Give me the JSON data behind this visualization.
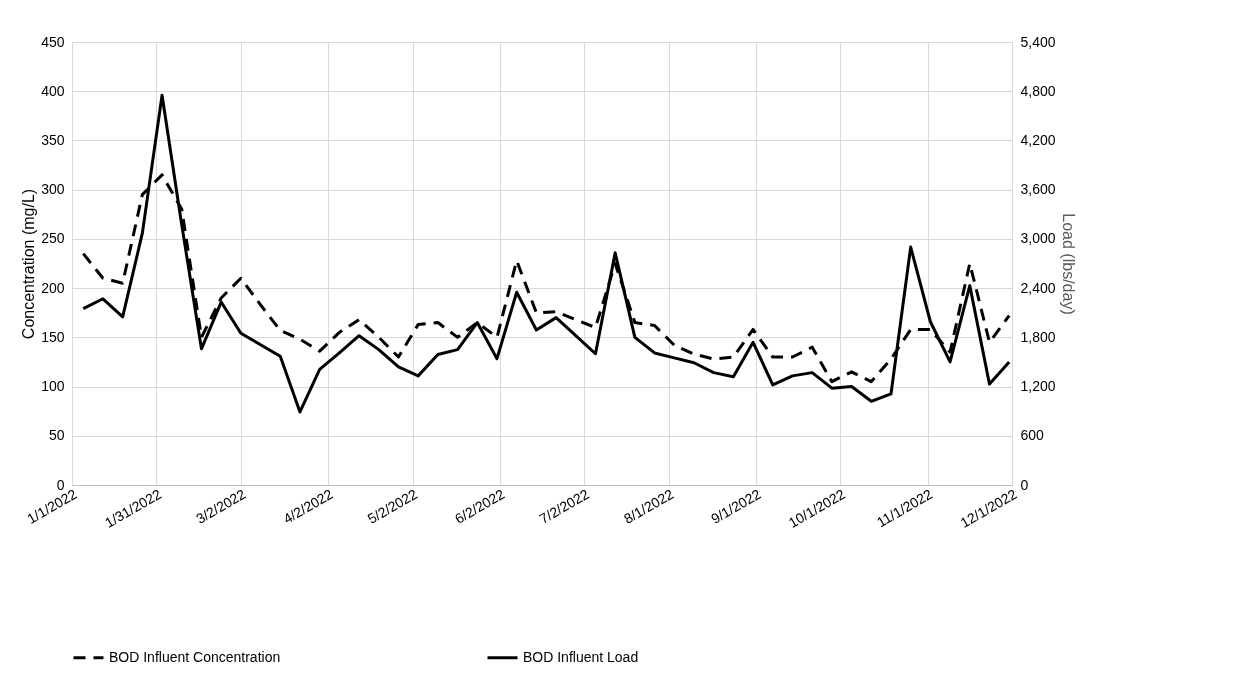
{
  "chart_data": {
    "type": "line",
    "x": [
      "2022-01-05",
      "2022-01-12",
      "2022-01-19",
      "2022-01-26",
      "2022-02-02",
      "2022-02-09",
      "2022-02-16",
      "2022-02-23",
      "2022-03-02",
      "2022-03-09",
      "2022-03-16",
      "2022-03-23",
      "2022-03-30",
      "2022-04-06",
      "2022-04-13",
      "2022-04-20",
      "2022-04-27",
      "2022-05-04",
      "2022-05-11",
      "2022-05-18",
      "2022-05-25",
      "2022-06-01",
      "2022-06-08",
      "2022-06-15",
      "2022-06-22",
      "2022-06-29",
      "2022-07-06",
      "2022-07-13",
      "2022-07-20",
      "2022-07-27",
      "2022-08-03",
      "2022-08-10",
      "2022-08-17",
      "2022-08-24",
      "2022-08-31",
      "2022-09-07",
      "2022-09-14",
      "2022-09-21",
      "2022-09-28",
      "2022-10-05",
      "2022-10-12",
      "2022-10-19",
      "2022-10-26",
      "2022-11-02",
      "2022-11-09",
      "2022-11-16",
      "2022-11-23",
      "2022-11-30"
    ],
    "series": [
      {
        "name": "BOD Influent Concentration",
        "color": "#000000",
        "line_style": "dashed",
        "values": [
          235,
          210,
          205,
          295,
          315,
          280,
          150,
          190,
          210,
          183,
          157,
          148,
          136,
          155,
          168,
          150,
          130,
          163,
          165,
          150,
          165,
          150,
          228,
          175,
          176,
          168,
          160,
          225,
          165,
          162,
          142,
          133,
          128,
          130,
          158,
          130,
          130,
          140,
          105,
          115,
          105,
          128,
          158,
          158,
          135,
          225,
          145,
          172
        ]
      },
      {
        "name": "BOD Influent Load",
        "color": "#000000",
        "line_style": "solid",
        "axis": "y2",
        "values": [
          2150,
          2270,
          2050,
          3070,
          4750,
          3170,
          1660,
          2230,
          1850,
          1710,
          1570,
          890,
          1410,
          1610,
          1820,
          1650,
          1440,
          1330,
          1590,
          1650,
          1980,
          1540,
          2350,
          1890,
          2040,
          1820,
          1600,
          2830,
          1800,
          1610,
          1550,
          1490,
          1370,
          1320,
          1740,
          1220,
          1330,
          1370,
          1180,
          1200,
          1020,
          1110,
          2900,
          1990,
          1500,
          2430,
          1230,
          1500
        ]
      }
    ],
    "ylabel": "Concentration (mg/L)",
    "y2label": "Load (lbs/day)",
    "xlim": [
      "2022-01-01",
      "2022-12-01"
    ],
    "xticks": [
      {
        "value": "2022-01-01",
        "label": "1/1/2022"
      },
      {
        "value": "2022-01-31",
        "label": "1/31/2022"
      },
      {
        "value": "2022-03-02",
        "label": "3/2/2022"
      },
      {
        "value": "2022-04-02",
        "label": "4/2/2022"
      },
      {
        "value": "2022-05-02",
        "label": "5/2/2022"
      },
      {
        "value": "2022-06-02",
        "label": "6/2/2022"
      },
      {
        "value": "2022-07-02",
        "label": "7/2/2022"
      },
      {
        "value": "2022-08-01",
        "label": "8/1/2022"
      },
      {
        "value": "2022-09-01",
        "label": "9/1/2022"
      },
      {
        "value": "2022-10-01",
        "label": "10/1/2022"
      },
      {
        "value": "2022-11-01",
        "label": "11/1/2022"
      },
      {
        "value": "2022-12-01",
        "label": "12/1/2022"
      }
    ],
    "ylim": [
      0,
      450
    ],
    "yticks": [
      0,
      50,
      100,
      150,
      200,
      250,
      300,
      350,
      400,
      450
    ],
    "y2lim": [
      0,
      5400
    ],
    "y2ticks": [
      0,
      {
        "value": 600,
        "label": "600"
      },
      {
        "value": 1200,
        "label": "1,200"
      },
      {
        "value": 1800,
        "label": "1,800"
      },
      {
        "value": 2400,
        "label": "2,400"
      },
      {
        "value": 3000,
        "label": "3,000"
      },
      {
        "value": 3600,
        "label": "3,600"
      },
      {
        "value": 4200,
        "label": "4,200"
      },
      {
        "value": 4800,
        "label": "4,800"
      },
      {
        "value": 5400,
        "label": "5,400"
      }
    ],
    "grid": true,
    "legend": "bottom"
  }
}
